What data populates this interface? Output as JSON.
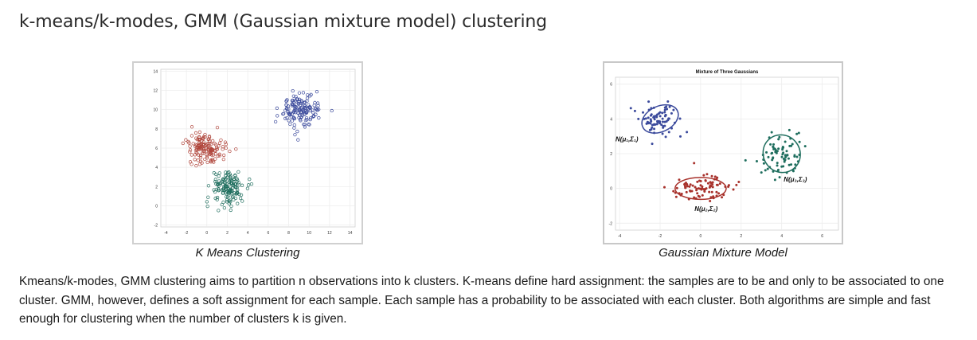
{
  "title": "k-means/k-modes, GMM (Gaussian mixture model) clustering",
  "figures": {
    "kmeans": {
      "caption": "K Means Clustering",
      "chart_data": {
        "type": "scatter",
        "x_ticks": [
          "-4",
          "-2",
          "0",
          "2",
          "4",
          "6",
          "8",
          "10",
          "12",
          "14"
        ],
        "y_ticks": [
          "-2",
          "0",
          "2",
          "4",
          "6",
          "8",
          "10",
          "12",
          "14"
        ],
        "xlim": [
          -4.5,
          14.5
        ],
        "ylim": [
          -2.2,
          14.2
        ],
        "grid": true,
        "marker": "open-circle",
        "clusters": [
          {
            "color": "#3b4a9c",
            "center": [
              9,
              10
            ],
            "spread": [
              1.6,
              1.4
            ],
            "n": 150
          },
          {
            "color": "#b0463c",
            "center": [
              0,
              6
            ],
            "spread": [
              1.4,
              1.3
            ],
            "n": 150
          },
          {
            "color": "#1f6e5e",
            "center": [
              2,
              2
            ],
            "spread": [
              1.3,
              1.3
            ],
            "n": 150
          }
        ]
      }
    },
    "gmm": {
      "caption": "Gaussian Mixture Model",
      "chart_data": {
        "type": "scatter",
        "title": "Mixture of Three Gaussians",
        "x_ticks": [
          "-4",
          "-2",
          "0",
          "2",
          "4",
          "6"
        ],
        "y_ticks": [
          "-2",
          "0",
          "2",
          "4",
          "6"
        ],
        "xlim": [
          -4.2,
          6.8
        ],
        "ylim": [
          -2.4,
          6.4
        ],
        "grid": true,
        "marker": "filled-dot",
        "components": [
          {
            "color": "#3b4a9c",
            "center": [
              -2,
              4
            ],
            "spread": [
              0.9,
              0.7
            ],
            "n": 80,
            "label": "N(μ₁,Σ₁)"
          },
          {
            "color": "#a8322c",
            "center": [
              0,
              0
            ],
            "spread": [
              1.2,
              0.6
            ],
            "n": 90,
            "label": "N(μ₂,Σ₂)"
          },
          {
            "color": "#1f6e5e",
            "center": [
              4,
              2
            ],
            "spread": [
              0.9,
              1.0
            ],
            "n": 80,
            "label": "N(μ₃,Σ₃)"
          }
        ]
      }
    }
  },
  "paragraph": "Kmeans/k-modes, GMM clustering aims to partition n observations into k clusters. K-means define hard assignment: the samples are to be and only to be associated to one cluster. GMM, however, defines a soft assignment for each sample. Each sample has a probability to be associated with each cluster. Both algorithms are simple and fast enough for clustering when the number of clusters k is given."
}
